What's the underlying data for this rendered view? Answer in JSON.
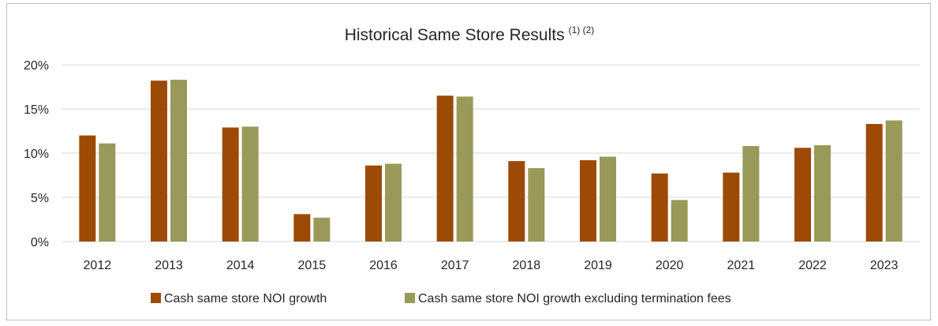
{
  "chart_data": {
    "type": "bar",
    "title": "Historical Same Store Results",
    "title_superscript": "(1) (2)",
    "categories": [
      "2012",
      "2013",
      "2014",
      "2015",
      "2016",
      "2017",
      "2018",
      "2019",
      "2020",
      "2021",
      "2022",
      "2023"
    ],
    "series": [
      {
        "name": "Cash same store NOI growth",
        "color": "#9c4a06",
        "values": [
          12.0,
          18.2,
          12.9,
          3.1,
          8.6,
          16.5,
          9.1,
          9.2,
          7.7,
          7.8,
          10.6,
          13.3
        ]
      },
      {
        "name": "Cash same store NOI growth excluding termination fees",
        "color": "#99995a",
        "values": [
          11.1,
          18.3,
          13.0,
          2.7,
          8.8,
          16.4,
          8.3,
          9.6,
          4.7,
          10.8,
          10.9,
          13.7
        ]
      }
    ],
    "ylim": [
      0,
      20
    ],
    "yticks": [
      "0%",
      "5%",
      "10%",
      "15%",
      "20%"
    ],
    "ytick_values": [
      0,
      5,
      10,
      15,
      20
    ],
    "grid": true,
    "legend_position": "bottom"
  }
}
